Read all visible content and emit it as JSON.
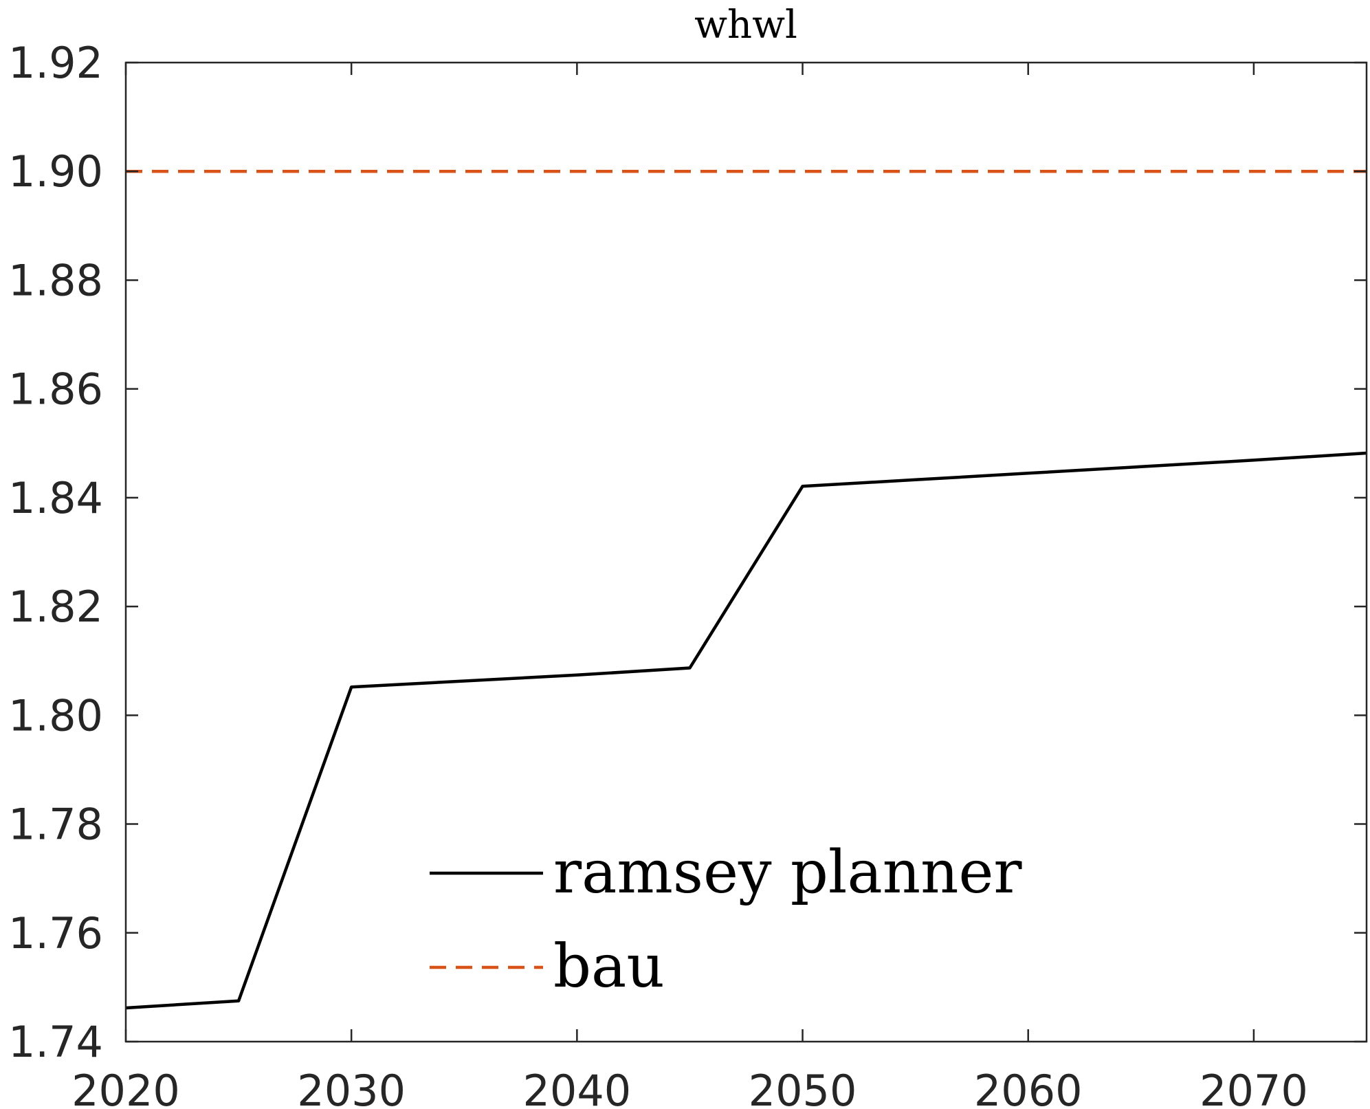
{
  "chart_data": {
    "type": "line",
    "title": "whwl",
    "xlabel": "",
    "ylabel": "",
    "xlim": [
      2020,
      2075
    ],
    "ylim": [
      1.74,
      1.92
    ],
    "xticks": [
      "2020",
      "2030",
      "2040",
      "2050",
      "2060",
      "2070"
    ],
    "yticks": [
      "1.74",
      "1.76",
      "1.78",
      "1.80",
      "1.82",
      "1.84",
      "1.86",
      "1.88",
      "1.90",
      "1.92"
    ],
    "grid": false,
    "legend_position": "lower-center",
    "series": [
      {
        "name": "ramsey planner",
        "color": "#000000",
        "style": "solid",
        "x": [
          2020,
          2025,
          2030,
          2035,
          2040,
          2045,
          2050,
          2055,
          2060,
          2065,
          2070,
          2075
        ],
        "y": [
          1.7462,
          1.7475,
          1.8052,
          1.8063,
          1.8074,
          1.8087,
          1.8421,
          1.8433,
          1.8445,
          1.8457,
          1.8469,
          1.8482
        ]
      },
      {
        "name": "bau",
        "color": "#D95319",
        "style": "dashed",
        "x": [
          2020,
          2075
        ],
        "y": [
          1.9,
          1.9
        ]
      }
    ]
  }
}
